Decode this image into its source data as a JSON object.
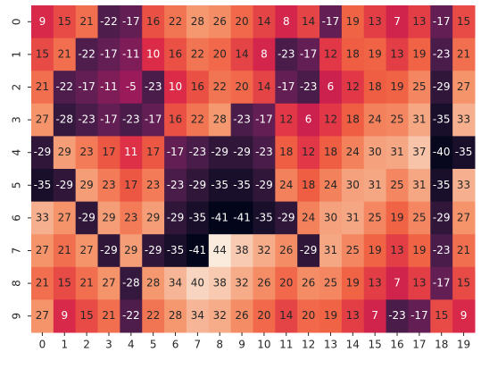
{
  "chart_data": {
    "type": "heatmap",
    "colormap": "rocket",
    "annotate": true,
    "x": [
      0,
      1,
      2,
      3,
      4,
      5,
      6,
      7,
      8,
      9,
      10,
      11,
      12,
      13,
      14,
      15,
      16,
      17,
      18,
      19
    ],
    "y": [
      0,
      1,
      2,
      3,
      4,
      5,
      6,
      7,
      8,
      9
    ],
    "values": [
      [
        9,
        15,
        21,
        -22,
        -17,
        16,
        22,
        28,
        26,
        20,
        14,
        8,
        14,
        -17,
        19,
        13,
        7,
        13,
        -17,
        15
      ],
      [
        15,
        21,
        -22,
        -17,
        -11,
        10,
        16,
        22,
        20,
        14,
        8,
        -23,
        -17,
        12,
        18,
        19,
        13,
        19,
        -23,
        21
      ],
      [
        21,
        -22,
        -17,
        -11,
        -5,
        -23,
        10,
        16,
        22,
        20,
        14,
        -17,
        -23,
        6,
        12,
        18,
        19,
        25,
        -29,
        27
      ],
      [
        27,
        -28,
        -23,
        -17,
        -23,
        -17,
        16,
        22,
        28,
        -23,
        -17,
        12,
        6,
        12,
        18,
        24,
        25,
        31,
        -35,
        33
      ],
      [
        -29,
        29,
        23,
        17,
        11,
        17,
        -17,
        -23,
        -29,
        -29,
        -23,
        18,
        12,
        18,
        24,
        30,
        31,
        37,
        -40,
        -35
      ],
      [
        -35,
        -29,
        29,
        23,
        17,
        23,
        -23,
        -29,
        -35,
        -35,
        -29,
        24,
        18,
        24,
        30,
        31,
        25,
        31,
        -35,
        33
      ],
      [
        33,
        27,
        -29,
        29,
        23,
        29,
        -29,
        -35,
        -41,
        -41,
        -35,
        -29,
        24,
        30,
        31,
        25,
        19,
        25,
        -29,
        27
      ],
      [
        27,
        21,
        27,
        -29,
        29,
        -29,
        -35,
        -41,
        44,
        38,
        32,
        26,
        -29,
        31,
        25,
        19,
        13,
        19,
        -23,
        21
      ],
      [
        21,
        15,
        21,
        27,
        -28,
        28,
        34,
        40,
        38,
        32,
        26,
        20,
        26,
        25,
        19,
        13,
        7,
        13,
        -17,
        15
      ],
      [
        27,
        9,
        15,
        21,
        -22,
        22,
        28,
        34,
        32,
        26,
        20,
        14,
        20,
        19,
        13,
        7,
        -23,
        -17,
        15,
        9
      ]
    ]
  }
}
